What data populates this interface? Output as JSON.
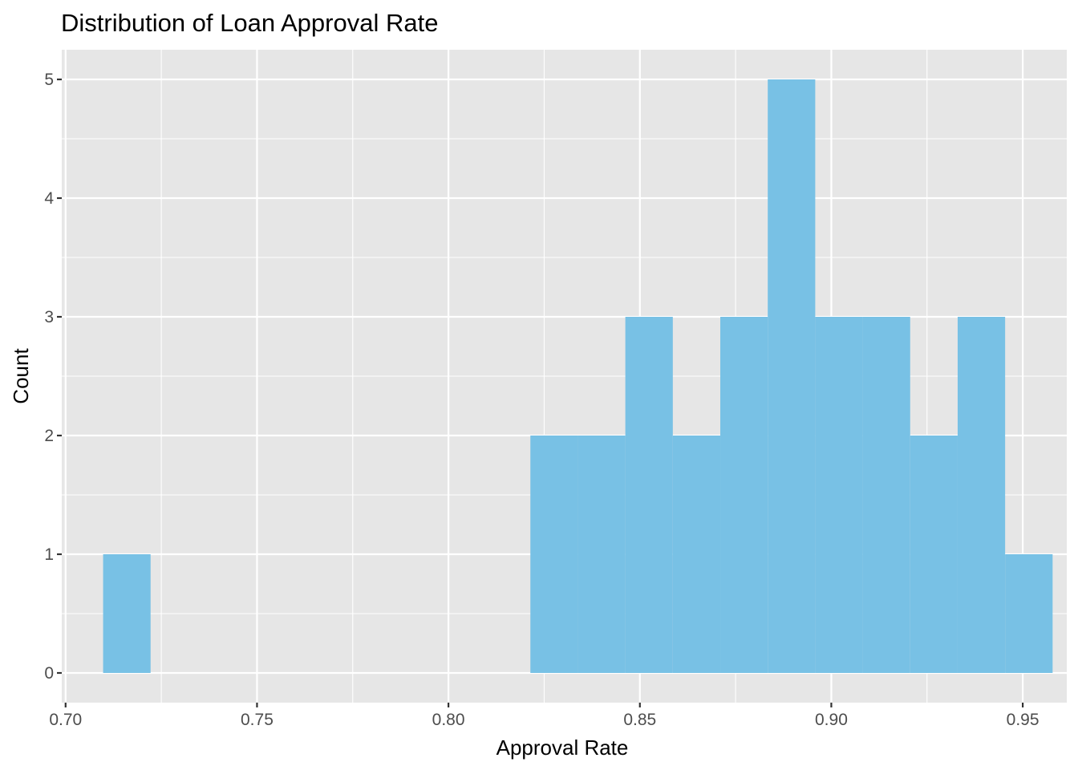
{
  "chart_data": {
    "type": "histogram",
    "title": "Distribution of Loan Approval Rate",
    "xlabel": "Approval Rate",
    "ylabel": "Count",
    "xlim": [
      0.699,
      0.9615
    ],
    "ylim": [
      -0.25,
      5.25
    ],
    "x_ticks": [
      0.7,
      0.75,
      0.8,
      0.85,
      0.9,
      0.95
    ],
    "x_tick_labels": [
      "0.70",
      "0.75",
      "0.80",
      "0.85",
      "0.90",
      "0.95"
    ],
    "y_ticks": [
      0,
      1,
      2,
      3,
      4,
      5
    ],
    "y_tick_labels": [
      "0",
      "1",
      "2",
      "3",
      "4",
      "5"
    ],
    "bin_width": 0.01238,
    "bins": [
      {
        "x0": 0.7098,
        "x1": 0.7222,
        "count": 1
      },
      {
        "x0": 0.7222,
        "x1": 0.7346,
        "count": 0
      },
      {
        "x0": 0.7346,
        "x1": 0.747,
        "count": 0
      },
      {
        "x0": 0.747,
        "x1": 0.7594,
        "count": 0
      },
      {
        "x0": 0.7594,
        "x1": 0.7718,
        "count": 0
      },
      {
        "x0": 0.7718,
        "x1": 0.7842,
        "count": 0
      },
      {
        "x0": 0.7842,
        "x1": 0.7966,
        "count": 0
      },
      {
        "x0": 0.7966,
        "x1": 0.809,
        "count": 0
      },
      {
        "x0": 0.809,
        "x1": 0.8214,
        "count": 0
      },
      {
        "x0": 0.8214,
        "x1": 0.8338,
        "count": 2
      },
      {
        "x0": 0.8338,
        "x1": 0.8462,
        "count": 2
      },
      {
        "x0": 0.8462,
        "x1": 0.8586,
        "count": 3
      },
      {
        "x0": 0.8586,
        "x1": 0.871,
        "count": 2
      },
      {
        "x0": 0.871,
        "x1": 0.8834,
        "count": 3
      },
      {
        "x0": 0.8834,
        "x1": 0.8958,
        "count": 5
      },
      {
        "x0": 0.8958,
        "x1": 0.9082,
        "count": 3
      },
      {
        "x0": 0.9082,
        "x1": 0.9206,
        "count": 3
      },
      {
        "x0": 0.9206,
        "x1": 0.933,
        "count": 2
      },
      {
        "x0": 0.933,
        "x1": 0.9454,
        "count": 3
      },
      {
        "x0": 0.9454,
        "x1": 0.9578,
        "count": 1
      }
    ],
    "grid": true,
    "legend": "none",
    "colors": {
      "bar_fill": "#78c1e5",
      "panel_background": "#e6e6e6",
      "grid": "#ffffff",
      "tick_text": "#4d4d4d",
      "text": "#000000"
    }
  }
}
